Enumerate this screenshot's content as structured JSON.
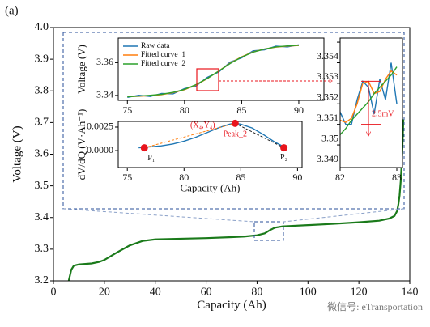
{
  "label": "(a)",
  "watermark": "微信号: eTransportation",
  "chart_data": [
    {
      "type": "line",
      "xlabel": "Capacity (Ah)",
      "ylabel": "Voltage (V)",
      "xlim": [
        0,
        140
      ],
      "ylim": [
        3.2,
        4.0
      ],
      "xticks": [
        0,
        20,
        40,
        60,
        80,
        100,
        120,
        140
      ],
      "yticks": [
        3.2,
        3.3,
        3.4,
        3.5,
        3.6,
        3.7,
        3.8,
        3.9,
        {
          "value": 4.0,
          "label": "4.0"
        }
      ],
      "x": [
        6,
        7,
        8,
        10,
        15,
        18,
        20,
        25,
        30,
        35,
        40,
        50,
        60,
        70,
        75,
        80,
        83,
        85,
        87,
        90,
        100,
        110,
        120,
        128,
        132,
        134,
        135,
        135.5,
        136,
        136.5,
        137,
        137.5
      ],
      "series": [
        {
          "color": "#1a7a1a",
          "values": [
            3.2,
            3.235,
            3.248,
            3.252,
            3.255,
            3.26,
            3.266,
            3.29,
            3.312,
            3.326,
            3.331,
            3.333,
            3.335,
            3.338,
            3.34,
            3.344,
            3.35,
            3.36,
            3.368,
            3.372,
            3.376,
            3.38,
            3.385,
            3.39,
            3.397,
            3.405,
            3.42,
            3.44,
            3.47,
            3.52,
            3.6,
            3.71
          ]
        }
      ]
    },
    {
      "type": "line",
      "ylabel": "Voltage (V)",
      "xlim": [
        74.2,
        92.2
      ],
      "ylim": [
        3.337,
        3.375
      ],
      "xticks": [
        75,
        80,
        85,
        90
      ],
      "yticks": [
        3.34,
        3.36
      ],
      "legend": "upper left",
      "x": [
        75,
        76,
        77,
        78,
        79,
        80,
        81,
        82,
        83,
        84,
        85,
        86,
        87,
        88,
        89,
        90
      ],
      "series": [
        {
          "name": "Raw data",
          "color": "#1f77b4",
          "values": [
            3.3388,
            3.3401,
            3.3394,
            3.3412,
            3.341,
            3.3442,
            3.3458,
            3.3511,
            3.3543,
            3.3604,
            3.3629,
            3.3672,
            3.3678,
            3.3701,
            3.3696,
            3.3709
          ]
        },
        {
          "name": "Fitted curve_1",
          "color": "#ff7f0e",
          "values": [
            3.3393,
            3.3395,
            3.3399,
            3.3405,
            3.3417,
            3.3435,
            3.3464,
            3.3503,
            3.355,
            3.3597,
            3.3636,
            3.3665,
            3.3683,
            3.3695,
            3.3701,
            3.3705
          ]
        },
        {
          "name": "Fitted curve_2",
          "color": "#2ca02c",
          "values": [
            3.3392,
            3.3396,
            3.3401,
            3.3407,
            3.3419,
            3.3437,
            3.3466,
            3.3504,
            3.3549,
            3.3595,
            3.3634,
            3.3664,
            3.3683,
            3.3696,
            3.3702,
            3.3706
          ]
        }
      ]
    },
    {
      "type": "line",
      "xlabel": "Capacity (Ah)",
      "ylabel": "dV/dQ (V·Ah⁻¹)",
      "xlim": [
        74.2,
        90.4
      ],
      "ylim": [
        -0.0018,
        0.0031
      ],
      "xticks": [
        75,
        80,
        85,
        90
      ],
      "yticks": [
        {
          "value": 0,
          "label": "0.0000"
        },
        {
          "value": 0.0025,
          "label": "0.0025"
        }
      ],
      "x": [
        76,
        77,
        78,
        79,
        80,
        81,
        82,
        83,
        84,
        84.5,
        85,
        86,
        87,
        88,
        89
      ],
      "series": [
        {
          "color": "#1f77b4",
          "values": [
            0.0003,
            0.0004,
            0.0005,
            0.0007,
            0.001,
            0.0014,
            0.0019,
            0.0024,
            0.0028,
            0.0029,
            0.0028,
            0.0024,
            0.0017,
            0.0009,
            0.0003
          ]
        }
      ],
      "points_color": "#e8141c",
      "points": [
        {
          "label": "P₁",
          "x": 76.5,
          "y": 0.0003
        },
        {
          "label": "Peak_2",
          "x": 84.5,
          "y": 0.0029
        },
        {
          "label": "P₂",
          "x": 88.8,
          "y": 0.0003
        }
      ],
      "annotation": "(X₄,Y₄)"
    },
    {
      "type": "line",
      "xlim": [
        82,
        83.1
      ],
      "ylim": [
        3.3479,
        3.3542
      ],
      "xticks": [
        82,
        83
      ],
      "yticks": [
        3.349,
        3.35,
        3.351,
        3.352,
        3.353,
        3.354
      ],
      "x": [
        82,
        82.1,
        82.2,
        82.3,
        82.4,
        82.5,
        82.6,
        82.7,
        82.8,
        82.9,
        83
      ],
      "series": [
        {
          "color": "#1f77b4",
          "values": [
            3.3506,
            3.35,
            3.35,
            3.3512,
            3.3521,
            3.3518,
            3.3505,
            3.3522,
            3.3512,
            3.353,
            3.351
          ]
        },
        {
          "color": "#ff7f0e",
          "values": [
            3.3502,
            3.3501,
            3.3503,
            3.351,
            3.352,
            3.3521,
            3.3515,
            3.3516,
            3.3522,
            3.3526,
            3.3524
          ]
        },
        {
          "color": "#2ca02c",
          "values": [
            3.3495,
            3.3498,
            3.3502,
            3.3505,
            3.3508,
            3.3511,
            3.3515,
            3.3518,
            3.3521,
            3.3524,
            3.3528
          ]
        }
      ],
      "annotation": "2.5mV"
    }
  ]
}
